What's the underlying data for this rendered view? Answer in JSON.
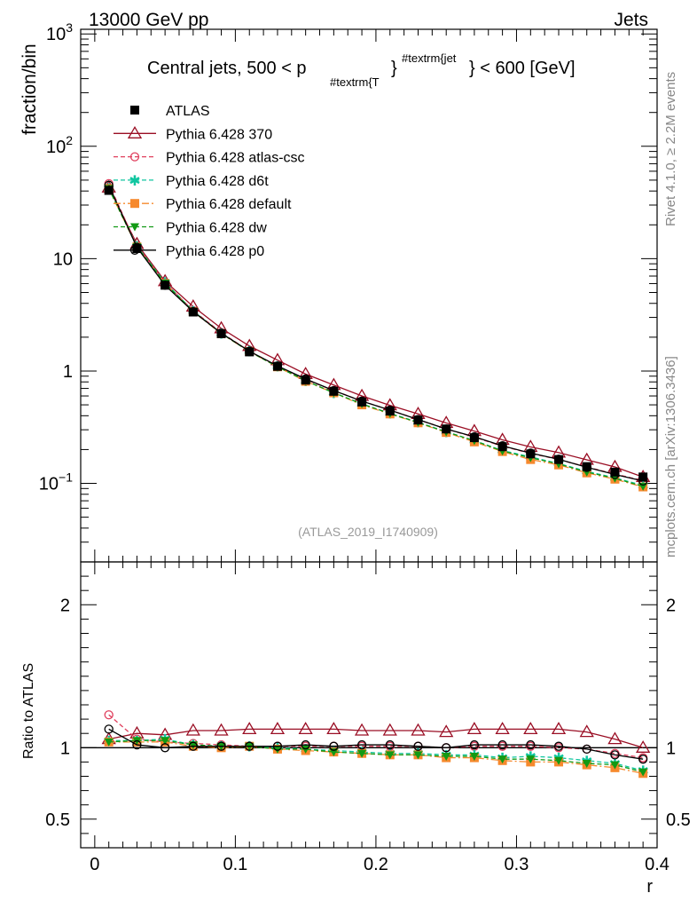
{
  "header": {
    "left": "13000 GeV pp",
    "right": "Jets",
    "title_main": "Central jets, 500 < p",
    "title_sub": "#textrm{T",
    "title_brace": "}",
    "title_sup": "#textrm{jet",
    "title_tail": "} < 600 [GeV]"
  },
  "side_labels": {
    "rivet": "Rivet 4.1.0, ≥ 2.2M events",
    "mcplots": "mcplots.cern.ch [arXiv:1306.3436]"
  },
  "analysis_id": "(ATLAS_2019_I1740909)",
  "chart_data": [
    {
      "type": "line",
      "panel": "main",
      "xlabel": "r",
      "ylabel": "fraction/bin",
      "yscale": "log",
      "xlim": [
        -0.01,
        0.4
      ],
      "ylim": [
        0.02,
        1100
      ],
      "y_ticks": [
        {
          "value": 0.1,
          "label": "10",
          "exp": "−1"
        },
        {
          "value": 1,
          "label": "1",
          "exp": ""
        },
        {
          "value": 10,
          "label": "10",
          "exp": ""
        },
        {
          "value": 100,
          "label": "10",
          "exp": "2"
        },
        {
          "value": 1000,
          "label": "10",
          "exp": "3"
        }
      ],
      "x": [
        0.01,
        0.03,
        0.05,
        0.07,
        0.09,
        0.11,
        0.13,
        0.15,
        0.17,
        0.19,
        0.21,
        0.23,
        0.25,
        0.27,
        0.29,
        0.31,
        0.33,
        0.35,
        0.37,
        0.39
      ],
      "series": [
        {
          "name": "ATLAS",
          "color": "#000000",
          "marker": "square-filled",
          "dash": "none",
          "values": [
            40.5,
            12.3,
            5.8,
            3.35,
            2.15,
            1.48,
            1.1,
            0.83,
            0.66,
            0.53,
            0.44,
            0.366,
            0.305,
            0.255,
            0.212,
            0.183,
            0.163,
            0.141,
            0.126,
            0.114
          ]
        },
        {
          "name": "Pythia 6.428 370",
          "color": "#9a0e24",
          "marker": "triangle-open",
          "dash": "solid",
          "values": [
            43.0,
            13.5,
            6.3,
            3.75,
            2.4,
            1.67,
            1.25,
            0.94,
            0.75,
            0.6,
            0.495,
            0.415,
            0.345,
            0.292,
            0.244,
            0.211,
            0.188,
            0.162,
            0.14,
            0.114
          ]
        },
        {
          "name": "Pythia 6.428 atlas-csc",
          "color": "#e0405e",
          "marker": "circle-open",
          "dash": "dashed",
          "values": [
            46.5,
            13.0,
            6.1,
            3.45,
            2.2,
            1.5,
            1.11,
            0.84,
            0.67,
            0.54,
            0.45,
            0.37,
            0.305,
            0.258,
            0.214,
            0.185,
            0.163,
            0.14,
            0.121,
            0.106
          ]
        },
        {
          "name": "Pythia 6.428 d6t",
          "color": "#10c6a0",
          "marker": "star",
          "dash": "dashed",
          "values": [
            42.5,
            12.9,
            6.15,
            3.42,
            2.17,
            1.5,
            1.1,
            0.82,
            0.64,
            0.51,
            0.42,
            0.35,
            0.288,
            0.24,
            0.196,
            0.172,
            0.15,
            0.128,
            0.112,
            0.096
          ]
        },
        {
          "name": "Pythia 6.428 default",
          "color": "#f6892d",
          "marker": "square-filled",
          "dash": "dashdot",
          "values": [
            42.0,
            12.7,
            6.0,
            3.38,
            2.15,
            1.49,
            1.09,
            0.81,
            0.64,
            0.5,
            0.415,
            0.346,
            0.284,
            0.234,
            0.192,
            0.163,
            0.146,
            0.124,
            0.109,
            0.093
          ]
        },
        {
          "name": "Pythia 6.428 dw",
          "color": "#129a14",
          "marker": "triangle-down-filled",
          "dash": "dashed",
          "values": [
            42.0,
            12.8,
            6.05,
            3.4,
            2.16,
            1.49,
            1.09,
            0.82,
            0.64,
            0.51,
            0.418,
            0.348,
            0.287,
            0.24,
            0.194,
            0.169,
            0.149,
            0.126,
            0.111,
            0.094
          ]
        },
        {
          "name": "Pythia 6.428 p0",
          "color": "#000000",
          "marker": "circle-open",
          "dash": "solid",
          "values": [
            45.0,
            12.6,
            5.8,
            3.38,
            2.17,
            1.5,
            1.11,
            0.85,
            0.67,
            0.54,
            0.449,
            0.37,
            0.305,
            0.26,
            0.216,
            0.186,
            0.164,
            0.139,
            0.12,
            0.105
          ]
        }
      ]
    },
    {
      "type": "line",
      "panel": "ratio",
      "xlabel": "r",
      "ylabel": "Ratio to ATLAS",
      "xlim": [
        -0.01,
        0.4
      ],
      "ylim": [
        0.3,
        2.3
      ],
      "x_ticks": [
        0,
        0.1,
        0.2,
        0.3,
        0.4
      ],
      "x_tick_labels": [
        "0",
        "0.1",
        "0.2",
        "0.3",
        "0.4"
      ],
      "y_ticks": [
        0.5,
        1,
        2
      ],
      "y_tick_labels": [
        "0.5",
        "1",
        "2"
      ],
      "x": [
        0.01,
        0.03,
        0.05,
        0.07,
        0.09,
        0.11,
        0.13,
        0.15,
        0.17,
        0.19,
        0.21,
        0.23,
        0.25,
        0.27,
        0.29,
        0.31,
        0.33,
        0.35,
        0.37,
        0.39
      ],
      "series": [
        {
          "name": "Pythia 6.428 370",
          "color": "#9a0e24",
          "marker": "triangle-open",
          "dash": "solid",
          "values": [
            1.06,
            1.1,
            1.09,
            1.12,
            1.12,
            1.13,
            1.13,
            1.13,
            1.13,
            1.12,
            1.12,
            1.12,
            1.11,
            1.13,
            1.13,
            1.13,
            1.13,
            1.11,
            1.06,
            1.0
          ]
        },
        {
          "name": "Pythia 6.428 atlas-csc",
          "color": "#e0405e",
          "marker": "circle-open",
          "dash": "dashed",
          "values": [
            1.23,
            1.06,
            1.04,
            1.03,
            1.02,
            1.01,
            1.01,
            1.01,
            1.01,
            1.01,
            1.01,
            1.01,
            1.0,
            1.01,
            1.01,
            1.01,
            1.0,
            0.99,
            0.96,
            0.93
          ]
        },
        {
          "name": "Pythia 6.428 d6t",
          "color": "#10c6a0",
          "marker": "star",
          "dash": "dashed",
          "values": [
            1.05,
            1.05,
            1.06,
            1.02,
            1.01,
            1.01,
            1.0,
            0.99,
            0.98,
            0.97,
            0.96,
            0.96,
            0.95,
            0.95,
            0.93,
            0.94,
            0.93,
            0.91,
            0.89,
            0.84
          ]
        },
        {
          "name": "Pythia 6.428 default",
          "color": "#f6892d",
          "marker": "square-filled",
          "dash": "dashdot",
          "values": [
            1.04,
            1.04,
            1.04,
            1.01,
            1.0,
            1.01,
            0.99,
            0.98,
            0.97,
            0.96,
            0.95,
            0.95,
            0.93,
            0.93,
            0.91,
            0.9,
            0.9,
            0.88,
            0.86,
            0.82
          ]
        },
        {
          "name": "Pythia 6.428 dw",
          "color": "#129a14",
          "marker": "triangle-down-filled",
          "dash": "dashed",
          "values": [
            1.04,
            1.05,
            1.05,
            1.02,
            1.01,
            1.01,
            0.99,
            0.99,
            0.97,
            0.96,
            0.95,
            0.95,
            0.94,
            0.94,
            0.92,
            0.92,
            0.91,
            0.89,
            0.88,
            0.83
          ]
        },
        {
          "name": "Pythia 6.428 p0",
          "color": "#000000",
          "marker": "circle-open",
          "dash": "solid",
          "values": [
            1.13,
            1.02,
            1.0,
            1.01,
            1.01,
            1.01,
            1.01,
            1.02,
            1.01,
            1.02,
            1.02,
            1.01,
            1.0,
            1.02,
            1.02,
            1.02,
            1.01,
            0.99,
            0.95,
            0.92
          ]
        }
      ]
    }
  ]
}
